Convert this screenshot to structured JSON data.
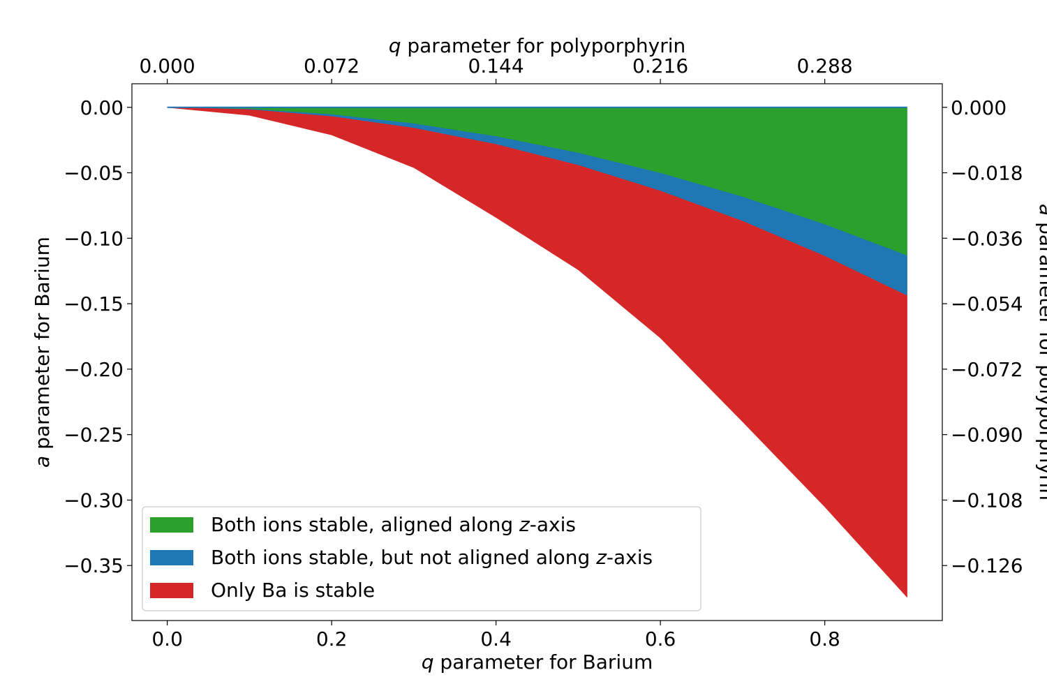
{
  "chart_data": {
    "type": "area",
    "xlabel": {
      "italic": "q",
      "rest": " parameter for Barium"
    },
    "ylabel": {
      "italic": "a",
      "rest": " parameter for Barium"
    },
    "x2label": {
      "italic": "q",
      "rest": " parameter for polyporphyrin"
    },
    "y2label": {
      "italic": "a",
      "rest": " parameter for polyporphyrin"
    },
    "xlim": [
      -0.043,
      0.943
    ],
    "ylim": [
      -0.392,
      0.018
    ],
    "xticks": [
      0.0,
      0.2,
      0.4,
      0.6,
      0.8
    ],
    "xtick_labels": [
      "0.0",
      "0.2",
      "0.4",
      "0.6",
      "0.8"
    ],
    "yticks": [
      0.0,
      -0.05,
      -0.1,
      -0.15,
      -0.2,
      -0.25,
      -0.3,
      -0.35
    ],
    "ytick_labels": [
      "0.00",
      "−0.05",
      "−0.10",
      "−0.15",
      "−0.20",
      "−0.25",
      "−0.30",
      "−0.35"
    ],
    "x2ticks_at_x": [
      0.0,
      0.2,
      0.4,
      0.6,
      0.8
    ],
    "x2tick_labels": [
      "0.000",
      "0.072",
      "0.144",
      "0.216",
      "0.288"
    ],
    "y2ticks_at_y": [
      0.0,
      -0.05,
      -0.1,
      -0.15,
      -0.2,
      -0.25,
      -0.3,
      -0.35
    ],
    "y2tick_labels": [
      "0.000",
      "−0.018",
      "−0.036",
      "−0.054",
      "−0.072",
      "−0.090",
      "−0.108",
      "−0.126"
    ],
    "legend_position": "lower-left",
    "series": [
      {
        "name": "Both ions stable, aligned along z-axis",
        "legend": {
          "before": "Both ions stable, aligned along ",
          "italic": "z",
          "after": "-axis"
        },
        "color": "#2ca02c",
        "x": [
          0.0,
          0.1,
          0.2,
          0.3,
          0.4,
          0.5,
          0.6,
          0.7,
          0.8,
          0.9
        ],
        "upper": [
          0,
          0,
          0,
          0,
          0,
          0,
          0,
          0,
          0,
          0
        ],
        "lower": [
          0,
          -0.0014,
          -0.0056,
          -0.0126,
          -0.0224,
          -0.035,
          -0.0504,
          -0.0686,
          -0.0896,
          -0.1134
        ]
      },
      {
        "name": "Both ions stable, but not aligned along z-axis",
        "legend": {
          "before": "Both ions stable, but not aligned along ",
          "italic": "z",
          "after": "-axis"
        },
        "color": "#1f77b4",
        "x": [
          0.0,
          0.1,
          0.2,
          0.3,
          0.4,
          0.5,
          0.6,
          0.7,
          0.8,
          0.9
        ],
        "upper": [
          0,
          -0.0014,
          -0.0056,
          -0.0126,
          -0.0224,
          -0.035,
          -0.0504,
          -0.0686,
          -0.0896,
          -0.1134
        ],
        "lower": [
          0,
          -0.0018,
          -0.0071,
          -0.016,
          -0.0284,
          -0.0444,
          -0.064,
          -0.0871,
          -0.1138,
          -0.144
        ]
      },
      {
        "name": "Only Ba is stable",
        "legend": {
          "before": "Only Ba is stable",
          "italic": "",
          "after": ""
        },
        "color": "#d62728",
        "x": [
          0.0,
          0.1,
          0.2,
          0.3,
          0.4,
          0.5,
          0.6,
          0.7,
          0.8,
          0.9
        ],
        "upper": [
          0,
          -0.0018,
          -0.0071,
          -0.016,
          -0.0284,
          -0.0444,
          -0.064,
          -0.0871,
          -0.1138,
          -0.144
        ],
        "lower": [
          0,
          -0.006,
          -0.021,
          -0.046,
          -0.084,
          -0.124,
          -0.176,
          -0.24,
          -0.305,
          -0.374
        ]
      }
    ]
  }
}
